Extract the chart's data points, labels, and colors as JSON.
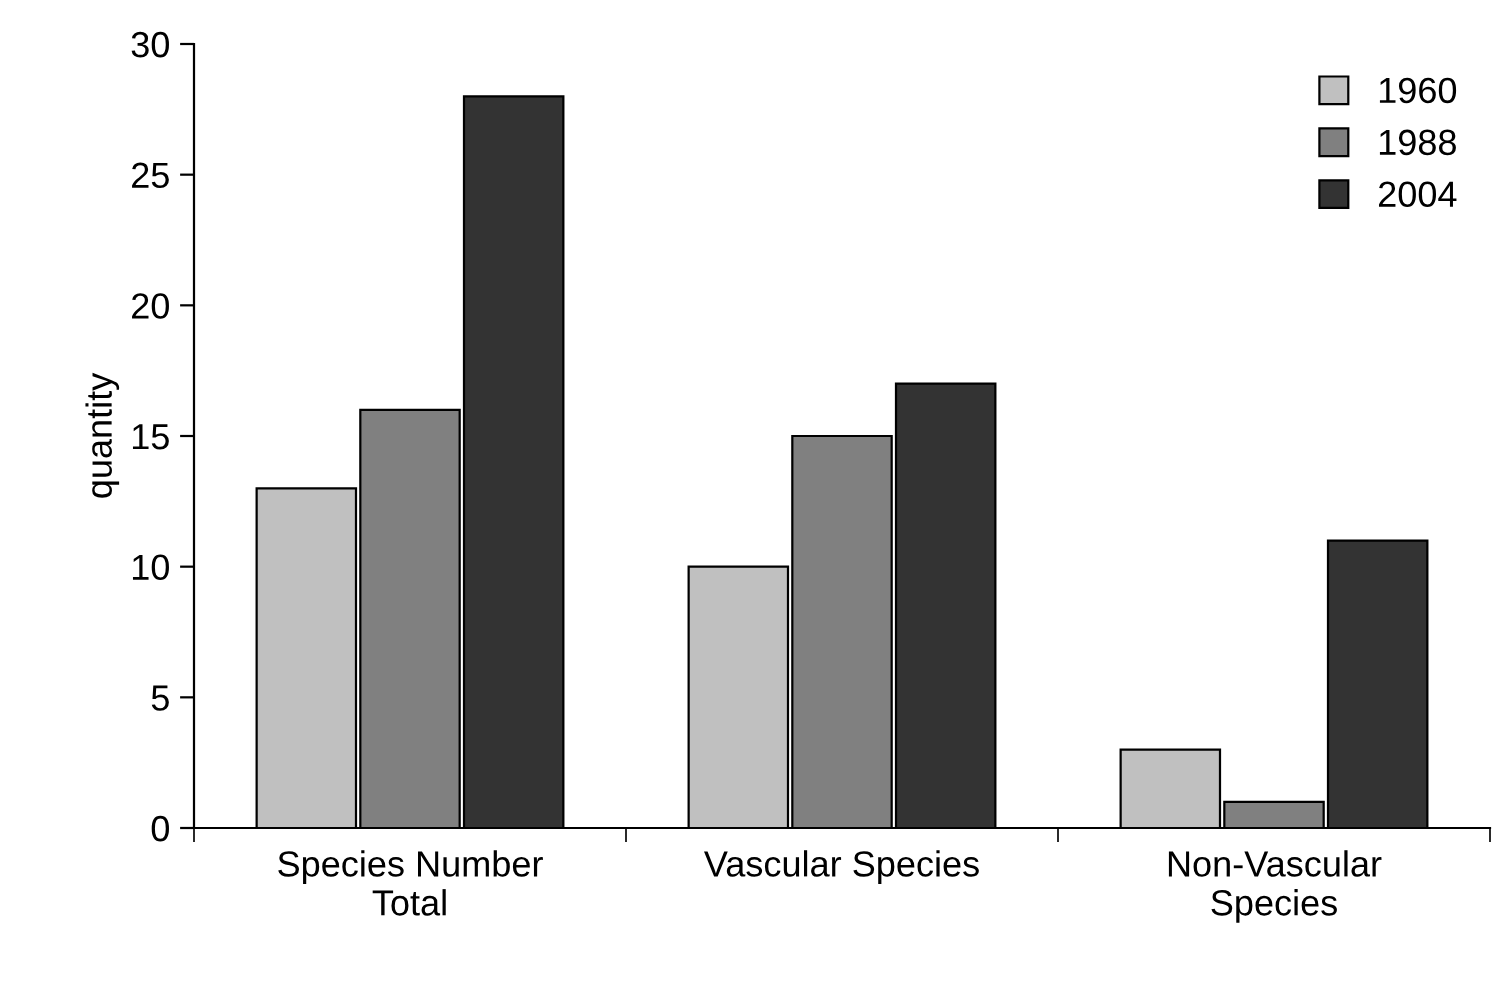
{
  "chart_data": {
    "type": "bar",
    "ylabel": "quantity",
    "categories": [
      "Species Number\nTotal",
      "Vascular Species",
      "Non-Vascular\nSpecies"
    ],
    "series": [
      {
        "name": "1960",
        "color": "#c0c0c0",
        "values": [
          13,
          10,
          3
        ]
      },
      {
        "name": "1988",
        "color": "#808080",
        "values": [
          16,
          15,
          1
        ]
      },
      {
        "name": "2004",
        "color": "#333333",
        "values": [
          28,
          17,
          11
        ]
      }
    ],
    "ylim": [
      0,
      30
    ],
    "yticks": [
      0,
      5,
      10,
      15,
      20,
      25,
      30
    ],
    "grid": false,
    "legend": "top right"
  }
}
